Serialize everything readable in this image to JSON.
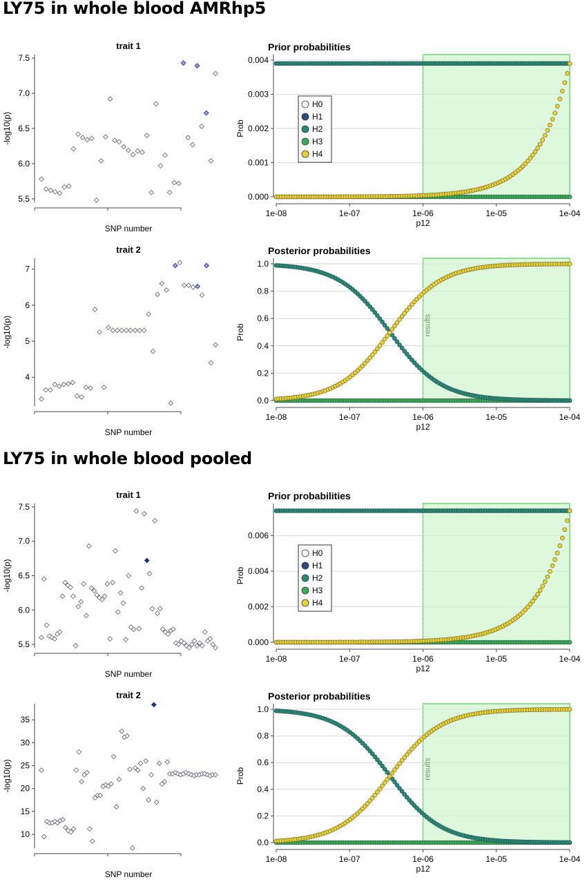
{
  "sections": [
    {
      "title": "LY75 in whole blood AMRhp5"
    },
    {
      "title": "LY75 in whole blood pooled"
    }
  ],
  "chart_data": [
    {
      "type": "scatter",
      "title": "trait 1",
      "xlabel": "SNP number",
      "ylabel": "-log10(p)",
      "ylim": [
        5.45,
        7.55
      ],
      "yticks": [
        "5.5",
        "6.0",
        "6.5",
        "7.0",
        "7.5"
      ],
      "yticks_values": [
        5.5,
        6.0,
        6.5,
        7.0,
        7.5
      ],
      "grid": false,
      "y": [
        5.78,
        5.64,
        5.62,
        5.6,
        5.58,
        5.67,
        5.68,
        6.21,
        6.42,
        6.37,
        6.34,
        6.36,
        5.48,
        6.04,
        6.38,
        6.92,
        6.33,
        6.31,
        6.24,
        6.19,
        6.13,
        6.18,
        6.16,
        6.4,
        5.59,
        6.85,
        5.97,
        6.12,
        5.59,
        5.73,
        5.72,
        7.43,
        6.37,
        6.27,
        7.39,
        6.53,
        6.72,
        6.04,
        7.28
      ],
      "highlight_index": [
        31,
        34,
        36
      ],
      "highlight_color": "#9aa3e0"
    },
    {
      "type": "scatter",
      "title": "trait 2",
      "xlabel": "SNP number",
      "ylabel": "-log10(p)",
      "ylim": [
        3.2,
        7.3
      ],
      "yticks": [
        "4",
        "5",
        "6",
        "7"
      ],
      "yticks_values": [
        4,
        5,
        6,
        7
      ],
      "grid": false,
      "y": [
        3.4,
        3.65,
        3.65,
        3.8,
        3.75,
        3.8,
        3.82,
        3.85,
        3.48,
        3.45,
        3.72,
        3.7,
        5.88,
        5.25,
        3.72,
        5.38,
        5.3,
        5.3,
        5.3,
        5.3,
        5.3,
        5.3,
        5.3,
        5.3,
        5.75,
        4.72,
        6.3,
        6.6,
        6.42,
        3.28,
        7.1,
        7.18,
        6.55,
        6.55,
        6.5,
        6.52,
        6.28,
        7.1,
        4.4,
        4.9
      ],
      "highlight_index": [
        30,
        35,
        37
      ],
      "highlight_color": "#9aa3e0"
    },
    {
      "type": "scatter",
      "title": "Prior probabilities",
      "xlabel": "p12",
      "ylabel": "Prob",
      "xscale": "log",
      "xlim": [
        1e-08,
        0.0001
      ],
      "xticks": [
        "1e-08",
        "1e-07",
        "1e-06",
        "1e-05",
        "1e-04"
      ],
      "ylim": [
        0,
        0.004
      ],
      "yticks": [
        "0.000",
        "0.001",
        "0.002",
        "0.003",
        "0.004"
      ],
      "yticks_values": [
        0,
        0.001,
        0.002,
        0.003,
        0.004
      ],
      "grid": true,
      "shaded_region": [
        1e-06,
        0.0001
      ],
      "vline": 1e-06,
      "legend_position": "left",
      "series": [
        {
          "name": "H0",
          "color": "#ffffff",
          "values": [
            0.0
          ]
        },
        {
          "name": "H1",
          "color": "#2e4a7a",
          "values": [
            0.0
          ]
        },
        {
          "name": "H2",
          "color": "#2a8a7a",
          "values": [
            0.0039
          ]
        },
        {
          "name": "H3",
          "color": "#3dab5a",
          "values": [
            0.0
          ]
        },
        {
          "name": "H4",
          "color": "#e8d23a",
          "values": [
            0.0
          ]
        }
      ]
    },
    {
      "type": "scatter",
      "title": "Posterior probabilities",
      "xlabel": "p12",
      "ylabel": "Prob",
      "xscale": "log",
      "xlim": [
        1e-08,
        0.0001
      ],
      "xticks": [
        "1e-08",
        "1e-07",
        "1e-06",
        "1e-05",
        "1e-04"
      ],
      "ylim": [
        0,
        1
      ],
      "yticks": [
        "0.0",
        "0.2",
        "0.4",
        "0.6",
        "0.8",
        "1.0"
      ],
      "yticks_values": [
        0,
        0.2,
        0.4,
        0.6,
        0.8,
        1.0
      ],
      "grid": true,
      "shaded_region": [
        1e-06,
        0.0001
      ],
      "vline": 1e-06,
      "vline_label": "results",
      "series": [
        {
          "name": "H0",
          "color": "#ffffff",
          "values": [
            0.0
          ]
        },
        {
          "name": "H1",
          "color": "#2e4a7a",
          "values": [
            0.0
          ]
        },
        {
          "name": "H2",
          "color": "#2a8a7a",
          "values": [
            0.96,
            0.5,
            0.0
          ]
        },
        {
          "name": "H3",
          "color": "#3dab5a",
          "values": [
            0.0
          ]
        },
        {
          "name": "H4",
          "color": "#e8d23a",
          "values": [
            0.04,
            0.5,
            1.0
          ]
        }
      ]
    },
    {
      "type": "scatter",
      "title": "trait 1",
      "xlabel": "SNP number",
      "ylabel": "-log10(p)",
      "ylim": [
        5.45,
        7.55
      ],
      "yticks": [
        "5.5",
        "6.0",
        "6.5",
        "7.0",
        "7.5"
      ],
      "yticks_values": [
        5.5,
        6.0,
        6.5,
        7.0,
        7.5
      ],
      "grid": false,
      "y": [
        5.6,
        6.45,
        5.78,
        5.62,
        5.6,
        5.58,
        5.65,
        5.68,
        6.2,
        6.4,
        6.36,
        6.33,
        6.2,
        5.48,
        6.05,
        6.12,
        6.38,
        5.92,
        6.93,
        6.32,
        6.28,
        6.22,
        6.18,
        6.15,
        6.2,
        6.38,
        5.58,
        6.4,
        6.86,
        5.97,
        6.25,
        6.1,
        5.57,
        6.5,
        5.75,
        5.72,
        7.44,
        5.73,
        6.32,
        7.4,
        6.72,
        6.53,
        6.02,
        7.3,
        5.95,
        6.02,
        5.72,
        5.68,
        5.65,
        5.7,
        5.72,
        5.52,
        5.5,
        5.55,
        5.52,
        5.48,
        5.45,
        5.5,
        5.55,
        5.48,
        5.52,
        5.48,
        5.68,
        5.55,
        5.58,
        5.5,
        5.45
      ],
      "highlight_index": [
        40
      ],
      "highlight_color": "#1a2f8a"
    },
    {
      "type": "scatter",
      "title": "trait 2",
      "xlabel": "SNP number",
      "ylabel": "-log10(p)",
      "ylim": [
        7,
        38.5
      ],
      "yticks": [
        "10",
        "15",
        "20",
        "25",
        "30",
        "35"
      ],
      "yticks_values": [
        10,
        15,
        20,
        25,
        30,
        35
      ],
      "grid": false,
      "y": [
        24,
        9.5,
        12.8,
        12.5,
        12.5,
        12.8,
        12.5,
        13,
        13.2,
        11.5,
        10.8,
        10.5,
        11.2,
        24,
        28,
        21.5,
        23,
        23.5,
        11.2,
        8.5,
        18,
        18.5,
        18.5,
        20.5,
        20.8,
        20.5,
        21,
        27,
        16,
        22,
        32.5,
        31.2,
        31.5,
        24.2,
        7,
        24.5,
        24,
        25.5,
        20,
        26,
        17.5,
        23,
        38.3,
        17,
        25.5,
        21,
        21.5,
        25.8,
        23.2,
        23.2,
        23.5,
        23.2,
        23,
        23.2,
        23.5,
        23.2,
        23,
        22.8,
        23,
        23,
        23.2,
        23.2,
        23,
        22.8,
        23,
        23
      ],
      "highlight_index": [
        42
      ],
      "highlight_color": "#1a2f8a"
    },
    {
      "type": "scatter",
      "title": "Prior probabilities",
      "xlabel": "p12",
      "ylabel": "Prob",
      "xscale": "log",
      "xlim": [
        1e-08,
        0.0001
      ],
      "xticks": [
        "1e-08",
        "1e-07",
        "1e-06",
        "1e-05",
        "1e-04"
      ],
      "ylim": [
        0,
        0.0075
      ],
      "yticks": [
        "0.000",
        "0.002",
        "0.004",
        "0.006"
      ],
      "yticks_values": [
        0,
        0.002,
        0.004,
        0.006
      ],
      "grid": true,
      "shaded_region": [
        1e-06,
        0.0001
      ],
      "vline": 1e-06,
      "legend_position": "left",
      "series": [
        {
          "name": "H0",
          "color": "#ffffff",
          "values": [
            0.0
          ]
        },
        {
          "name": "H1",
          "color": "#2e4a7a",
          "values": [
            0.0
          ]
        },
        {
          "name": "H2",
          "color": "#2a8a7a",
          "values": [
            0.0074
          ]
        },
        {
          "name": "H3",
          "color": "#3dab5a",
          "values": [
            0.0
          ]
        },
        {
          "name": "H4",
          "color": "#e8d23a",
          "values": [
            0.0
          ]
        }
      ]
    },
    {
      "type": "scatter",
      "title": "Posterior probabilities",
      "xlabel": "p12",
      "ylabel": "Prob",
      "xscale": "log",
      "xlim": [
        1e-08,
        0.0001
      ],
      "xticks": [
        "1e-08",
        "1e-07",
        "1e-06",
        "1e-05",
        "1e-04"
      ],
      "ylim": [
        0,
        1
      ],
      "yticks": [
        "0.0",
        "0.2",
        "0.4",
        "0.6",
        "0.8",
        "1.0"
      ],
      "yticks_values": [
        0,
        0.2,
        0.4,
        0.6,
        0.8,
        1.0
      ],
      "grid": true,
      "shaded_region": [
        1e-06,
        0.0001
      ],
      "vline": 1e-06,
      "vline_label": "results",
      "series": [
        {
          "name": "H0",
          "color": "#ffffff",
          "values": [
            0.0
          ]
        },
        {
          "name": "H1",
          "color": "#2e4a7a",
          "values": [
            0.0
          ]
        },
        {
          "name": "H2",
          "color": "#2a8a7a",
          "values": [
            0.97,
            0.5,
            0.0
          ]
        },
        {
          "name": "H3",
          "color": "#3dab5a",
          "values": [
            0.0
          ]
        },
        {
          "name": "H4",
          "color": "#e8d23a",
          "values": [
            0.03,
            0.5,
            1.0
          ]
        }
      ]
    }
  ]
}
